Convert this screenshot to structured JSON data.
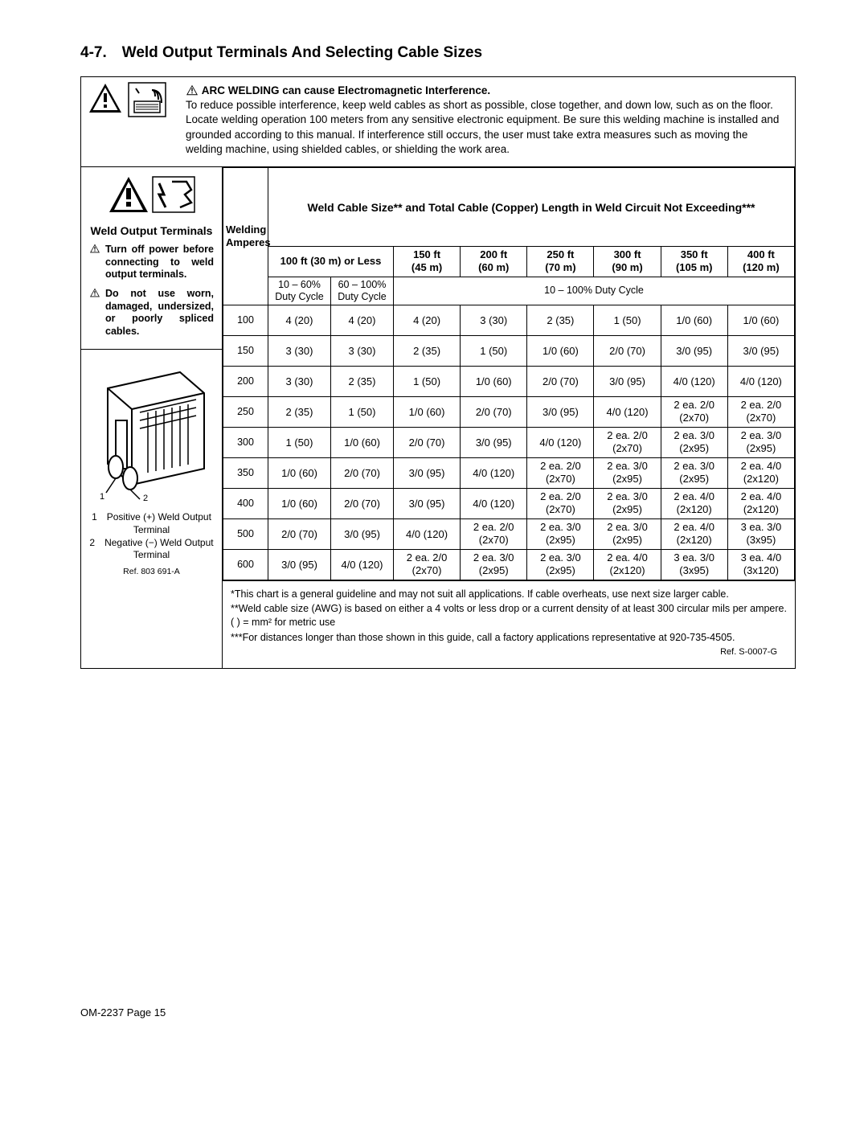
{
  "section_title": "4-7. Weld Output Terminals And Selecting Cable Sizes",
  "emi": {
    "bold": "ARC WELDING can cause Electromagnetic Interference.",
    "body": "To reduce possible interference, keep weld cables as short as possible, close together, and down low, such as on the floor. Locate welding operation 100 meters from any sensitive electronic equipment. Be sure this welding machine is installed and grounded according to this manual. If interference still occurs, the user must take extra measures such as moving the welding machine, using shielded cables, or shielding the work area."
  },
  "terminals": {
    "heading": "Weld Output Terminals",
    "warn1": "Turn off power before connecting to weld output terminals.",
    "warn2": "Do not use worn, damaged, undersized, or poorly spliced cables."
  },
  "illus": {
    "label1": "1 Positive (+) Weld Output Terminal",
    "label2": "2 Negative (−) Weld Output Terminal"
  },
  "table": {
    "main_header": "Weld Cable Size** and Total Cable (Copper) Length in Weld Circuit Not Exceeding***",
    "col_amps": "Welding Amperes",
    "col_100": "100 ft (30 m) or Less",
    "duty_a": "10 – 60% Duty Cycle",
    "duty_b": "60 – 100% Duty Cycle",
    "duty_c": "10 – 100% Duty Cycle",
    "cols": [
      {
        "ft": "150 ft",
        "m": "(45 m)"
      },
      {
        "ft": "200 ft",
        "m": "(60 m)"
      },
      {
        "ft": "250 ft",
        "m": "(70 m)"
      },
      {
        "ft": "300 ft",
        "m": "(90 m)"
      },
      {
        "ft": "350 ft",
        "m": "(105 m)"
      },
      {
        "ft": "400 ft",
        "m": "(120 m)"
      }
    ],
    "rows": [
      {
        "amp": "100",
        "a": "4 (20)",
        "b": "4 (20)",
        "c": [
          "4 (20)",
          "3 (30)",
          "2 (35)",
          "1 (50)",
          "1/0 (60)",
          "1/0 (60)"
        ]
      },
      {
        "amp": "150",
        "a": "3 (30)",
        "b": "3 (30)",
        "c": [
          "2 (35)",
          "1 (50)",
          "1/0 (60)",
          "2/0 (70)",
          "3/0 (95)",
          "3/0 (95)"
        ]
      },
      {
        "amp": "200",
        "a": "3 (30)",
        "b": "2 (35)",
        "c": [
          "1 (50)",
          "1/0 (60)",
          "2/0 (70)",
          "3/0 (95)",
          "4/0 (120)",
          "4/0 (120)"
        ]
      },
      {
        "amp": "250",
        "a": "2 (35)",
        "b": "1 (50)",
        "c": [
          "1/0 (60)",
          "2/0 (70)",
          "3/0 (95)",
          "4/0 (120)",
          "2 ea. 2/0 (2x70)",
          "2 ea. 2/0 (2x70)"
        ]
      },
      {
        "amp": "300",
        "a": "1 (50)",
        "b": "1/0 (60)",
        "c": [
          "2/0 (70)",
          "3/0 (95)",
          "4/0 (120)",
          "2 ea. 2/0 (2x70)",
          "2 ea. 3/0 (2x95)",
          "2 ea. 3/0 (2x95)"
        ]
      },
      {
        "amp": "350",
        "a": "1/0 (60)",
        "b": "2/0 (70)",
        "c": [
          "3/0 (95)",
          "4/0 (120)",
          "2 ea. 2/0 (2x70)",
          "2 ea. 3/0 (2x95)",
          "2 ea. 3/0 (2x95)",
          "2 ea. 4/0 (2x120)"
        ]
      },
      {
        "amp": "400",
        "a": "1/0 (60)",
        "b": "2/0 (70)",
        "c": [
          "3/0 (95)",
          "4/0 (120)",
          "2 ea. 2/0 (2x70)",
          "2 ea. 3/0 (2x95)",
          "2 ea. 4/0 (2x120)",
          "2 ea. 4/0 (2x120)"
        ]
      },
      {
        "amp": "500",
        "a": "2/0 (70)",
        "b": "3/0 (95)",
        "c": [
          "4/0 (120)",
          "2 ea. 2/0 (2x70)",
          "2 ea. 3/0 (2x95)",
          "2 ea. 3/0 (2x95)",
          "2 ea. 4/0 (2x120)",
          "3 ea. 3/0 (3x95)"
        ]
      },
      {
        "amp": "600",
        "a": "3/0 (95)",
        "b": "4/0 (120)",
        "c": [
          "2 ea. 2/0 (2x70)",
          "2 ea. 3/0 (2x95)",
          "2 ea. 3/0 (2x95)",
          "2 ea. 4/0 (2x120)",
          "3 ea. 3/0 (3x95)",
          "3 ea. 4/0 (3x120)"
        ]
      }
    ]
  },
  "footnotes": {
    "f1": "*This chart is a general guideline and may not suit all applications. If cable overheats, use next size larger cable.",
    "f2": "**Weld cable size (AWG) is based on either a 4 volts or less drop or a current density of at least 300 circular mils per ampere. ( ) = mm² for metric use",
    "f3": "***For distances longer than those shown in this guide, call a factory applications representative at 920-735-4505.",
    "ref": "Ref. S-0007-G",
    "illus_ref": "Ref. 803 691-A"
  },
  "page_num": "OM-2237 Page 15"
}
